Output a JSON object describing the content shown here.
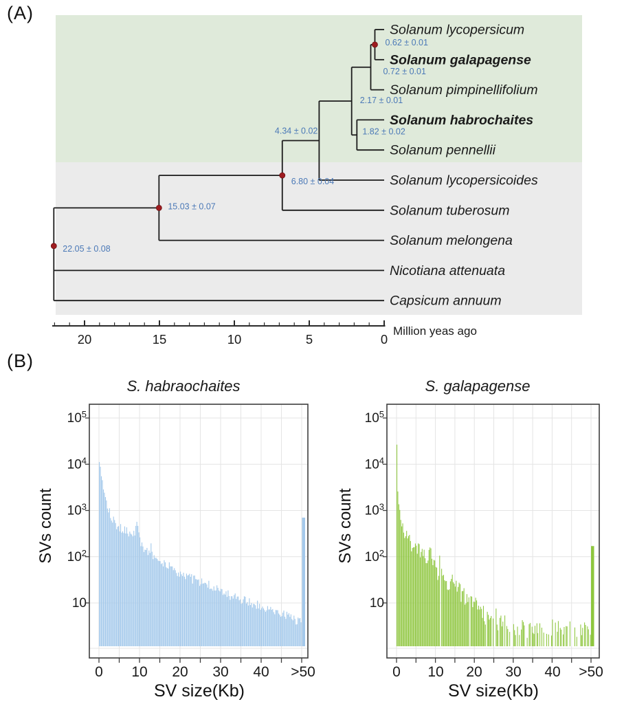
{
  "panel_a": {
    "label": "(A)",
    "clade_background_colors": {
      "tomato_clade": "#dfeada",
      "outgroup": "#ebebeb"
    },
    "time_axis": {
      "label": "Million yeas ago",
      "major_ticks": [
        20,
        15,
        10,
        5,
        0
      ],
      "minor_tick_interval_myr": 1,
      "axis_max_myr": 22.2
    },
    "tree": {
      "style": {
        "branch_color": "#1b1b1b",
        "divergence_label_color": "#4b79b7",
        "calibration_dot_color": "#9e1c20"
      },
      "tips": [
        {
          "name": "Solanum lycopersicum",
          "bold": false
        },
        {
          "name": "Solanum galapagense",
          "bold": true
        },
        {
          "name": "Solanum pimpinellifolium",
          "bold": false
        },
        {
          "name": "Solanum habrochaites",
          "bold": true
        },
        {
          "name": "Solanum pennellii",
          "bold": false
        },
        {
          "name": "Solanum lycopersicoides",
          "bold": false
        },
        {
          "name": "Solanum tuberosum",
          "bold": false
        },
        {
          "name": "Solanum melongena",
          "bold": false
        },
        {
          "name": "Nicotiana attenuata",
          "bold": false
        },
        {
          "name": "Capsicum annuum",
          "bold": false
        }
      ],
      "nodes": [
        {
          "id": "n1",
          "age_myr": 0.62,
          "label": "0.62 ± 0.01",
          "calibration_dot": true,
          "children": [
            "Solanum lycopersicum",
            "Solanum galapagense"
          ]
        },
        {
          "id": "n2",
          "age_myr": 0.72,
          "label": "0.72 ± 0.01",
          "calibration_dot": false,
          "children": [
            "n1",
            "Solanum pimpinellifolium"
          ]
        },
        {
          "id": "n3",
          "age_myr": 1.82,
          "label": "1.82 ± 0.02",
          "calibration_dot": false,
          "children": [
            "Solanum habrochaites",
            "Solanum pennellii"
          ]
        },
        {
          "id": "n4",
          "age_myr": 2.17,
          "label": "2.17 ± 0.01",
          "calibration_dot": false,
          "children": [
            "n2",
            "n3"
          ]
        },
        {
          "id": "n5",
          "age_myr": 4.34,
          "label": "4.34 ± 0.02",
          "calibration_dot": false,
          "children": [
            "n4",
            "Solanum lycopersicoides"
          ]
        },
        {
          "id": "n6",
          "age_myr": 6.8,
          "label": "6.80 ± 0.04",
          "calibration_dot": true,
          "children": [
            "n5",
            "Solanum tuberosum"
          ]
        },
        {
          "id": "n7",
          "age_myr": 15.03,
          "label": "15.03 ± 0.07",
          "calibration_dot": true,
          "children": [
            "n6",
            "Solanum melongena"
          ]
        },
        {
          "id": "n8",
          "age_myr": 22.05,
          "label": "22.05 ± 0.08",
          "calibration_dot": true,
          "children": [
            "n7",
            "Nicotiana attenuata",
            "Capsicum annuum"
          ]
        }
      ]
    }
  },
  "panel_b": {
    "label": "(B)",
    "y_tick_labels": [
      "10^5",
      "10^4",
      "10^3",
      "10^2",
      "10"
    ]
  },
  "chart_data": [
    {
      "type": "bar",
      "title": "S. habraochaites",
      "xlabel": "SV size(Kb)",
      "ylabel": "SVs count",
      "y_scale": "log10",
      "ylim": [
        1,
        100000
      ],
      "x_ticks": [
        "0",
        "10",
        "20",
        "30",
        "40",
        ">50"
      ],
      "grid": true,
      "bar_color": "#a4c9eb",
      "bin_width_kb": 0.25,
      "min_count_band": 2,
      "sparse_after_kb": null,
      "overflow_bin": {
        "label": ">50",
        "count": 700
      },
      "envelope_kb_count": [
        [
          0.1,
          14000
        ],
        [
          0.35,
          9000
        ],
        [
          0.6,
          6000
        ],
        [
          0.9,
          4200
        ],
        [
          1.2,
          3000
        ],
        [
          1.6,
          2100
        ],
        [
          2,
          1500
        ],
        [
          2.5,
          1050
        ],
        [
          3,
          800
        ],
        [
          3.5,
          650
        ],
        [
          4,
          520
        ],
        [
          4.5,
          450
        ],
        [
          5,
          420
        ],
        [
          5.5,
          400
        ],
        [
          6,
          380
        ],
        [
          6.5,
          360
        ],
        [
          7,
          340
        ],
        [
          7.5,
          330
        ],
        [
          8,
          320
        ],
        [
          8.5,
          330
        ],
        [
          9,
          360
        ],
        [
          9.4,
          520
        ],
        [
          9.7,
          420
        ],
        [
          10,
          260
        ],
        [
          10.5,
          180
        ],
        [
          11,
          150
        ],
        [
          11.7,
          135
        ],
        [
          12.4,
          125
        ],
        [
          13,
          200
        ],
        [
          13.3,
          110
        ],
        [
          14,
          95
        ],
        [
          15,
          80
        ],
        [
          16,
          70
        ],
        [
          17,
          62
        ],
        [
          18,
          56
        ],
        [
          19,
          50
        ],
        [
          20,
          46
        ],
        [
          21,
          42
        ],
        [
          22,
          38
        ],
        [
          23,
          34
        ],
        [
          24,
          31
        ],
        [
          25,
          29
        ],
        [
          26,
          26
        ],
        [
          27,
          24
        ],
        [
          28,
          22
        ],
        [
          29,
          20
        ],
        [
          30,
          18
        ],
        [
          31,
          16
        ],
        [
          32,
          15
        ],
        [
          33,
          14
        ],
        [
          34,
          13
        ],
        [
          35,
          12
        ],
        [
          36,
          11
        ],
        [
          37,
          10
        ],
        [
          38,
          9.5
        ],
        [
          39,
          9
        ],
        [
          40,
          8.5
        ],
        [
          41,
          8
        ],
        [
          42,
          7.5
        ],
        [
          43,
          7
        ],
        [
          44,
          6.5
        ],
        [
          45,
          6
        ],
        [
          46,
          5.5
        ],
        [
          47,
          5
        ],
        [
          48,
          4.5
        ],
        [
          49,
          4.2
        ],
        [
          50,
          4
        ]
      ]
    },
    {
      "type": "bar",
      "title": "S. galapagense",
      "xlabel": "SV size(Kb)",
      "ylabel": "SVs count",
      "y_scale": "log10",
      "ylim": [
        1,
        100000
      ],
      "x_ticks": [
        "0",
        "10",
        "20",
        "30",
        "40",
        ">50"
      ],
      "grid": true,
      "bar_color": "#8ec63e",
      "bin_width_kb": 0.25,
      "min_count_band": 1.9,
      "sparse_after_kb": 10,
      "overflow_bin": {
        "label": ">50",
        "count": 170
      },
      "envelope_kb_count": [
        [
          0.1,
          48000
        ],
        [
          0.35,
          3600
        ],
        [
          0.6,
          1600
        ],
        [
          0.9,
          1000
        ],
        [
          1.2,
          700
        ],
        [
          1.6,
          480
        ],
        [
          2,
          380
        ],
        [
          2.5,
          300
        ],
        [
          3,
          240
        ],
        [
          3.5,
          200
        ],
        [
          4,
          170
        ],
        [
          4.4,
          230
        ],
        [
          4.8,
          150
        ],
        [
          5.2,
          130
        ],
        [
          5.6,
          170
        ],
        [
          6,
          110
        ],
        [
          6.4,
          200
        ],
        [
          6.8,
          100
        ],
        [
          7.2,
          90
        ],
        [
          7.6,
          80
        ],
        [
          8,
          75
        ],
        [
          8.4,
          130
        ],
        [
          8.8,
          120
        ],
        [
          9.2,
          70
        ],
        [
          9.6,
          60
        ],
        [
          10,
          50
        ],
        [
          10.5,
          45
        ],
        [
          11,
          55
        ],
        [
          11.4,
          130
        ],
        [
          11.8,
          45
        ],
        [
          12.3,
          38
        ],
        [
          13,
          30
        ],
        [
          13.6,
          26
        ],
        [
          14.2,
          32
        ],
        [
          15,
          22
        ],
        [
          16,
          18
        ],
        [
          17,
          15
        ],
        [
          18,
          13
        ],
        [
          19,
          11
        ],
        [
          20,
          9
        ],
        [
          21,
          8
        ],
        [
          22,
          6
        ],
        [
          23,
          5
        ],
        [
          24,
          4.5
        ],
        [
          25,
          7
        ],
        [
          26,
          4
        ],
        [
          27,
          3.5
        ],
        [
          28,
          5
        ],
        [
          29,
          3
        ],
        [
          30,
          2.5
        ],
        [
          32,
          3
        ],
        [
          34,
          2.5
        ],
        [
          36,
          3
        ],
        [
          38,
          2.5
        ],
        [
          40,
          3
        ],
        [
          42,
          4
        ],
        [
          44,
          2.5
        ],
        [
          46,
          3
        ],
        [
          48,
          2.5
        ],
        [
          50,
          2.5
        ]
      ]
    }
  ]
}
